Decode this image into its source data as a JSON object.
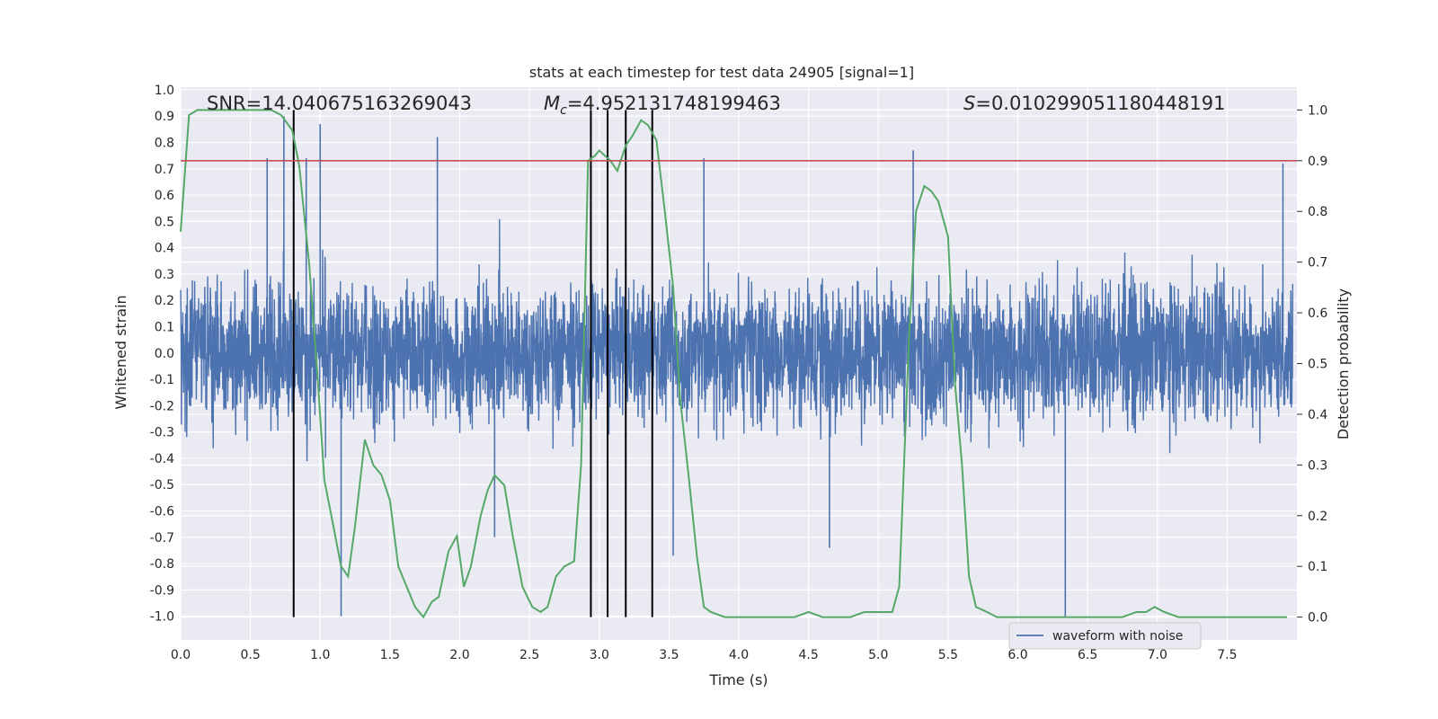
{
  "chart_data": {
    "type": "line",
    "title": "stats at each timestep for test data 24905 [signal=1]",
    "xlabel": "Time (s)",
    "ylabel": "Whitened strain",
    "y2label": "Detection probability",
    "xlim": [
      0.0,
      8.0
    ],
    "ylim": [
      -1.09,
      1.01
    ],
    "y2lim": [
      -0.045,
      1.045
    ],
    "xticks": [
      "0.0",
      "0.5",
      "1.0",
      "1.5",
      "2.0",
      "2.5",
      "3.0",
      "3.5",
      "4.0",
      "4.5",
      "5.0",
      "5.5",
      "6.0",
      "6.5",
      "7.0",
      "7.5"
    ],
    "yticks": [
      "1.0",
      "0.9",
      "0.8",
      "0.7",
      "0.6",
      "0.5",
      "0.4",
      "0.3",
      "0.2",
      "0.1",
      "0.0",
      "-0.1",
      "-0.2",
      "-0.3",
      "-0.4",
      "-0.5",
      "-0.6",
      "-0.7",
      "-0.8",
      "-0.9",
      "-1.0"
    ],
    "y2ticks": [
      "1.0",
      "0.9",
      "0.8",
      "0.7",
      "0.6",
      "0.5",
      "0.4",
      "0.3",
      "0.2",
      "0.1",
      "0.0"
    ],
    "annotations": {
      "snr": "SNR=14.040675163269043",
      "mc_symbol": "M",
      "mc_sub": "c",
      "mc_value": "=4.952131748199463",
      "s_symbol": "S",
      "s_value": "=0.010299051180448191"
    },
    "threshold": 0.9,
    "vlines": [
      0.81,
      2.94,
      3.06,
      3.19,
      3.38
    ],
    "series": [
      {
        "name": "waveform with noise",
        "color": "#4c72b0",
        "kind": "noise-waveform",
        "envelope": 0.45,
        "spikes": [
          {
            "x": 0.62,
            "y": 0.74
          },
          {
            "x": 0.74,
            "y": 0.9
          },
          {
            "x": 0.9,
            "y": 0.74
          },
          {
            "x": 1.0,
            "y": 0.87
          },
          {
            "x": 1.15,
            "y": -1.0
          },
          {
            "x": 1.84,
            "y": 0.82
          },
          {
            "x": 2.25,
            "y": -0.7
          },
          {
            "x": 2.94,
            "y": 0.77
          },
          {
            "x": 3.38,
            "y": 0.9
          },
          {
            "x": 3.53,
            "y": -0.77
          },
          {
            "x": 3.75,
            "y": 0.74
          },
          {
            "x": 4.65,
            "y": -0.74
          },
          {
            "x": 5.25,
            "y": 0.77
          },
          {
            "x": 6.34,
            "y": -1.0
          },
          {
            "x": 7.9,
            "y": 0.72
          }
        ]
      },
      {
        "name": "",
        "color": "#55a868",
        "kind": "probability",
        "x": [
          0.0,
          0.06,
          0.12,
          0.25,
          0.4,
          0.55,
          0.65,
          0.72,
          0.8,
          0.85,
          0.92,
          0.98,
          1.03,
          1.08,
          1.15,
          1.2,
          1.25,
          1.32,
          1.38,
          1.44,
          1.5,
          1.56,
          1.62,
          1.68,
          1.74,
          1.8,
          1.85,
          1.92,
          1.98,
          2.03,
          2.08,
          2.15,
          2.2,
          2.25,
          2.32,
          2.38,
          2.45,
          2.52,
          2.58,
          2.63,
          2.69,
          2.75,
          2.82,
          2.87,
          2.92,
          2.97,
          3.0,
          3.08,
          3.13,
          3.19,
          3.24,
          3.3,
          3.35,
          3.41,
          3.47,
          3.53,
          3.58,
          3.64,
          3.7,
          3.75,
          3.8,
          3.9,
          4.0,
          4.1,
          4.2,
          4.3,
          4.4,
          4.5,
          4.6,
          4.7,
          4.8,
          4.9,
          5.0,
          5.1,
          5.15,
          5.22,
          5.27,
          5.33,
          5.38,
          5.43,
          5.5,
          5.55,
          5.6,
          5.65,
          5.7,
          5.78,
          5.85,
          6.0,
          6.2,
          6.4,
          6.6,
          6.75,
          6.85,
          6.92,
          6.98,
          7.05,
          7.15,
          7.3,
          7.5,
          7.7,
          7.93
        ],
        "y": [
          0.76,
          0.99,
          1.0,
          1.0,
          1.0,
          1.0,
          1.0,
          0.99,
          0.96,
          0.89,
          0.7,
          0.48,
          0.27,
          0.2,
          0.1,
          0.08,
          0.18,
          0.35,
          0.3,
          0.28,
          0.23,
          0.1,
          0.06,
          0.02,
          0.0,
          0.03,
          0.04,
          0.13,
          0.16,
          0.06,
          0.1,
          0.2,
          0.25,
          0.28,
          0.26,
          0.16,
          0.06,
          0.02,
          0.01,
          0.02,
          0.08,
          0.1,
          0.11,
          0.3,
          0.9,
          0.91,
          0.92,
          0.9,
          0.88,
          0.93,
          0.95,
          0.98,
          0.97,
          0.94,
          0.8,
          0.65,
          0.43,
          0.28,
          0.12,
          0.02,
          0.01,
          0.0,
          0.0,
          0.0,
          0.0,
          0.0,
          0.0,
          0.01,
          0.0,
          0.0,
          0.0,
          0.01,
          0.01,
          0.01,
          0.06,
          0.55,
          0.8,
          0.85,
          0.84,
          0.82,
          0.75,
          0.46,
          0.3,
          0.08,
          0.02,
          0.01,
          0.0,
          0.0,
          0.0,
          0.0,
          0.0,
          0.0,
          0.01,
          0.01,
          0.02,
          0.01,
          0.0,
          0.0,
          0.0,
          0.0,
          0.0
        ]
      },
      {
        "name": "",
        "color": "#c44e52",
        "kind": "threshold-line"
      }
    ],
    "legend": {
      "location": "lower right",
      "entries": [
        "waveform with noise"
      ]
    },
    "grid": true
  }
}
